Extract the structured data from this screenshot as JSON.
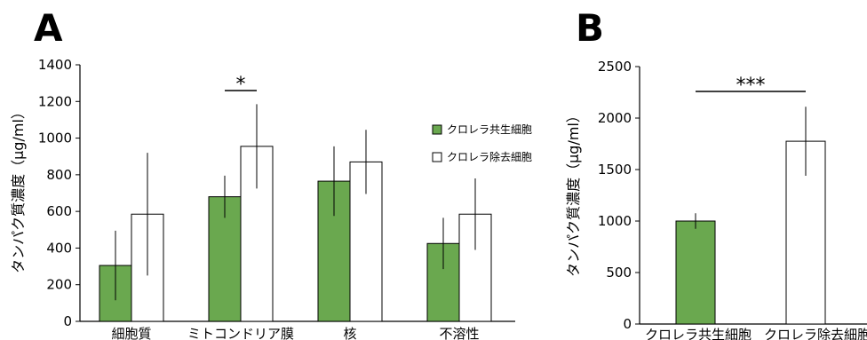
{
  "chart_data": [
    {
      "type": "bar",
      "panel_label": "A",
      "ylabel": "タンパク質濃度（μg/ml）",
      "ylim": [
        0,
        1400
      ],
      "yticks": [
        0,
        200,
        400,
        600,
        800,
        1000,
        1200,
        1400
      ],
      "categories": [
        "細胞質",
        "ミトコンドリア膜",
        "核",
        "不溶性"
      ],
      "series": [
        {
          "name": "クロレラ共生細胞",
          "color": "#6aa84f",
          "values": [
            305,
            680,
            765,
            425
          ],
          "errors": [
            190,
            115,
            190,
            140
          ]
        },
        {
          "name": "クロレラ除去細胞",
          "color": "#ffffff",
          "values": [
            585,
            955,
            870,
            585
          ],
          "errors": [
            335,
            230,
            175,
            195
          ]
        }
      ],
      "legend_position": "right",
      "significance": [
        {
          "category_index": 1,
          "label": "*"
        }
      ]
    },
    {
      "type": "bar",
      "panel_label": "B",
      "ylabel": "タンパク質濃度（μg/ml）",
      "ylim": [
        0,
        2500
      ],
      "yticks": [
        0,
        500,
        1000,
        1500,
        2000,
        2500
      ],
      "categories": [
        "クロレラ共生細胞",
        "クロレラ除去細胞"
      ],
      "colors": [
        "#6aa84f",
        "#ffffff"
      ],
      "values": [
        1000,
        1775
      ],
      "errors": [
        75,
        335
      ],
      "significance": [
        {
          "between": [
            0,
            1
          ],
          "label": "***"
        }
      ]
    }
  ]
}
